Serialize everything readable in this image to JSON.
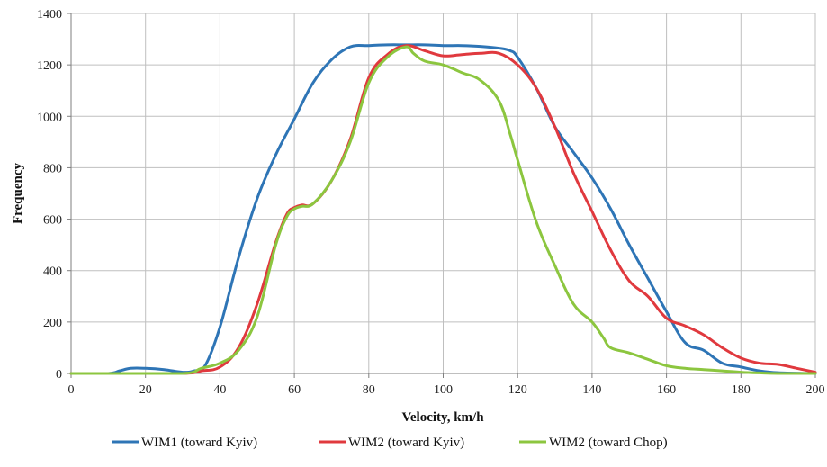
{
  "chart_data": {
    "type": "line",
    "title": "",
    "xlabel": "Velocity, km/h",
    "ylabel": "Frequency",
    "xlim": [
      0,
      200
    ],
    "ylim": [
      0,
      1400
    ],
    "x_ticks": [
      0,
      20,
      40,
      60,
      80,
      100,
      120,
      140,
      160,
      180,
      200
    ],
    "y_ticks": [
      0,
      200,
      400,
      600,
      800,
      1000,
      1200,
      1400
    ],
    "grid": true,
    "legend_position": "bottom",
    "series": [
      {
        "name": "WIM1 (toward Kyiv)",
        "color": "#2e75b6",
        "x": [
          0,
          10,
          13,
          16,
          20,
          25,
          30,
          33,
          36,
          40,
          45,
          50,
          55,
          60,
          65,
          70,
          75,
          80,
          85,
          90,
          95,
          100,
          105,
          110,
          115,
          118,
          120,
          125,
          130,
          135,
          140,
          145,
          150,
          155,
          160,
          165,
          170,
          175,
          180,
          185,
          190,
          200
        ],
        "y": [
          0,
          0,
          10,
          20,
          20,
          15,
          5,
          10,
          30,
          180,
          450,
          680,
          850,
          990,
          1130,
          1220,
          1270,
          1275,
          1278,
          1278,
          1278,
          1275,
          1275,
          1272,
          1265,
          1255,
          1230,
          1110,
          960,
          860,
          760,
          640,
          500,
          370,
          240,
          120,
          90,
          40,
          25,
          10,
          3,
          0
        ]
      },
      {
        "name": "WIM2 (toward Kyiv)",
        "color": "#e0393e",
        "x": [
          0,
          10,
          30,
          35,
          40,
          45,
          50,
          55,
          58,
          60,
          62,
          65,
          70,
          75,
          80,
          85,
          90,
          95,
          100,
          105,
          110,
          115,
          120,
          125,
          130,
          135,
          140,
          145,
          150,
          155,
          160,
          165,
          170,
          175,
          180,
          185,
          190,
          195,
          200
        ],
        "y": [
          0,
          0,
          0,
          10,
          25,
          100,
          270,
          510,
          620,
          645,
          655,
          660,
          750,
          910,
          1150,
          1240,
          1275,
          1255,
          1235,
          1240,
          1245,
          1245,
          1200,
          1110,
          960,
          780,
          630,
          480,
          360,
          300,
          215,
          185,
          150,
          100,
          60,
          40,
          35,
          20,
          5
        ]
      },
      {
        "name": "WIM2 (toward Chop)",
        "color": "#8cc63f",
        "x": [
          0,
          10,
          30,
          35,
          40,
          45,
          50,
          55,
          58,
          60,
          62,
          65,
          70,
          75,
          80,
          85,
          90,
          92,
          95,
          100,
          105,
          110,
          115,
          118,
          120,
          125,
          130,
          135,
          140,
          143,
          145,
          150,
          155,
          160,
          165,
          170,
          175,
          180,
          185,
          190,
          200
        ],
        "y": [
          0,
          0,
          0,
          20,
          40,
          90,
          220,
          500,
          610,
          640,
          650,
          660,
          750,
          900,
          1130,
          1230,
          1270,
          1245,
          1215,
          1200,
          1170,
          1140,
          1060,
          930,
          830,
          590,
          420,
          270,
          200,
          140,
          100,
          80,
          55,
          30,
          20,
          15,
          10,
          5,
          2,
          0,
          0
        ]
      }
    ]
  }
}
